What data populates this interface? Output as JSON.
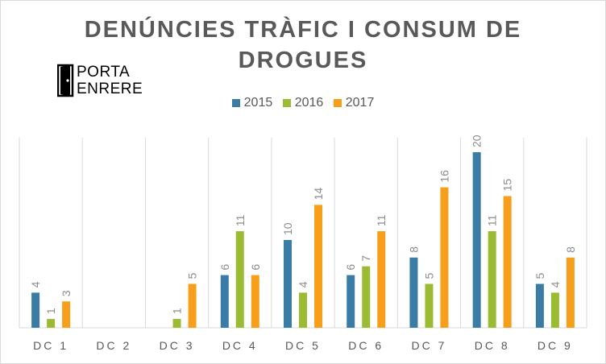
{
  "logo": {
    "line1": "PORTA",
    "line2": "ENRERE"
  },
  "colors": {
    "2015": "#3a7ca5",
    "2016": "#9bbb32",
    "2017": "#f79e1b"
  },
  "chart_data": {
    "type": "bar",
    "title_line1": "DENÚNCIES TRÀFIC I CONSUM DE",
    "title_line2": "DROGUES",
    "categories": [
      "DC 1",
      "DC 2",
      "DC 3",
      "DC 4",
      "DC 5",
      "DC 6",
      "DC 7",
      "DC 8",
      "DC 9"
    ],
    "series": [
      {
        "name": "2015",
        "values": [
          4,
          null,
          null,
          6,
          10,
          6,
          8,
          20,
          5
        ]
      },
      {
        "name": "2016",
        "values": [
          1,
          null,
          1,
          11,
          4,
          7,
          5,
          11,
          4
        ]
      },
      {
        "name": "2017",
        "values": [
          3,
          null,
          5,
          6,
          14,
          11,
          16,
          15,
          8
        ]
      }
    ],
    "ylim": [
      0,
      20
    ],
    "legend_position": "top",
    "grid": "vertical category separators",
    "data_labels": "rotated, above bars"
  }
}
